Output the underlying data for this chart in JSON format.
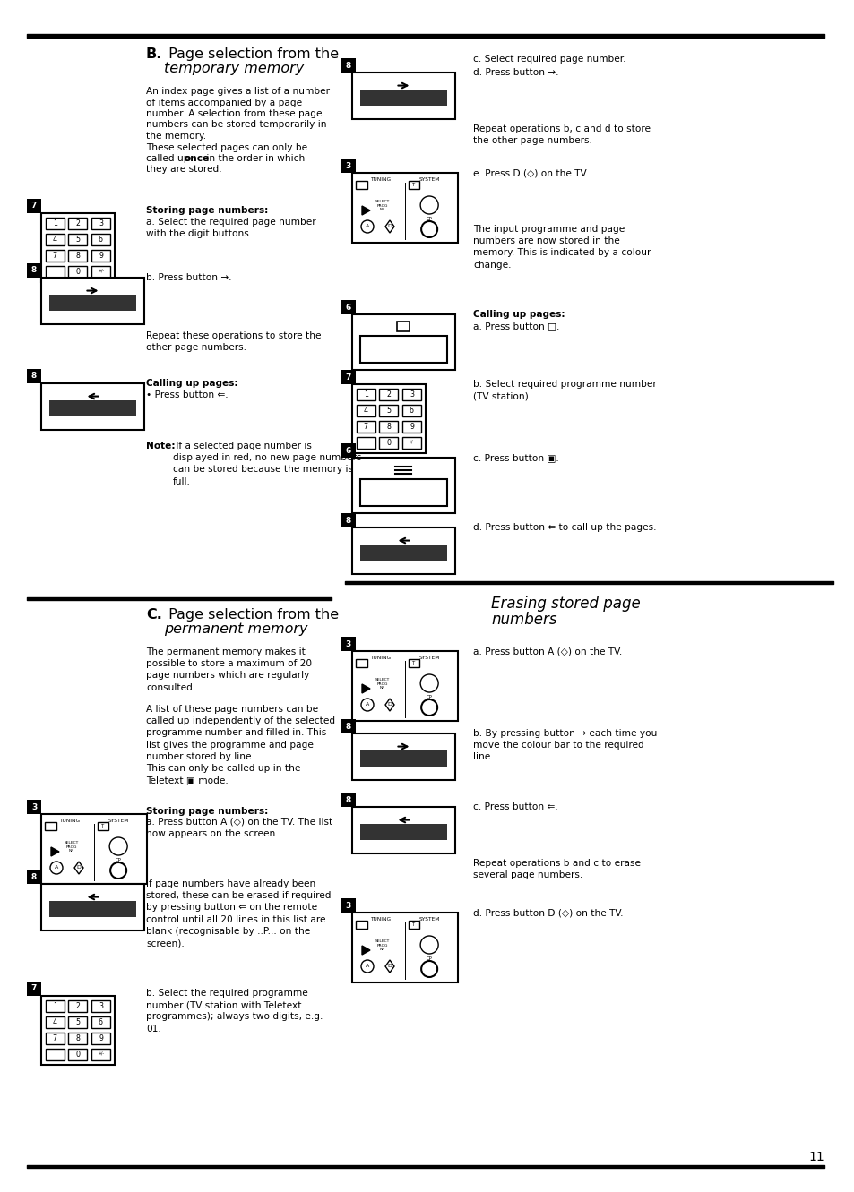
{
  "page_number": "11",
  "bg_color": "#ffffff",
  "text_color": "#000000",
  "arrow_right": "→",
  "arrow_left": "⇐",
  "bullet": "•",
  "diamond": "◇",
  "square_icon": "□",
  "teletext_icon": "▣",
  "B_title1": "B. Page selection from the",
  "B_title2": "temporary memory",
  "B_body": "An index page gives a list of a number\nof items accompanied by a page\nnumber. A selection from these page\nnumbers can be stored temporarily in\nthe memory.\nThese selected pages can only be\ncalled up once in the order in which\nthey are stored.",
  "B_storing": "Storing page numbers:",
  "B_a": "a. Select the required page number\nwith the digit buttons.",
  "B_repeat1": "Repeat these operations to store the\nother page numbers.",
  "B_calling": "Calling up pages:",
  "B_note_bold": "Note:",
  "B_note_rest": " If a selected page number is\ndisplayed in red, no new page numbers\ncan be stored because the memory is\nfull.",
  "C_title1": "C. Page selection from the",
  "C_title2": "permanent memory",
  "C_body1": "The permanent memory makes it\npossible to store a maximum of 20\npage numbers which are regularly\nconsulted.",
  "C_body2_pre": "A list of these page numbers can be\ncalled up independently of the selected\nprogramme number and filled in. This\nlist gives the programme and page\nnumber stored by line.\nThis can only be called up in the\nTeletext ",
  "C_body2_post": " mode.",
  "C_storing": "Storing page numbers:",
  "C_stored": "If page numbers have already been\nstored, these can be erased if required\nby pressing button ⇐ on the remote\ncontrol until all 20 lines in this list are\nblank (recognisable by ..P... on the\nscreen).",
  "C_b": "b. Select the required programme\nnumber (TV station with Teletext\nprogrammes); always two digits, e.g.\n01.",
  "R_c_select": "c. Select required page number.",
  "R_repeat": "Repeat operations b, c and d to store\nthe other page numbers.",
  "R_stored_info": "The input programme and page\nnumbers are now stored in the\nmemory. This is indicated by a colour\nchange.",
  "R_calling": "Calling up pages:",
  "R_b_select": "b. Select required programme number\n(TV station).",
  "R_d_press": "d. Press button ⇐ to call up the pages.",
  "Erase_title1": "Erasing stored page",
  "Erase_title2": "numbers",
  "Erase_b": "b. By pressing button → each time you\nmove the colour bar to the required\nline.",
  "Erase_repeat": "Repeat operations b and c to erase\nseveral page numbers."
}
